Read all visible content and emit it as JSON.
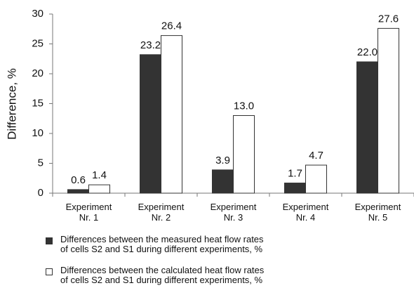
{
  "chart_data": {
    "type": "bar",
    "y_label": "Difference, %",
    "categories": [
      "Experiment\nNr. 1",
      "Experiment\nNr. 2",
      "Experiment\nNr. 3",
      "Experiment\nNr. 4",
      "Experiment\nNr. 5"
    ],
    "series": [
      {
        "name": "Differences between the measured heat flow rates of cells S2 and S1 during different experiments, %",
        "color": "#333333",
        "values": [
          0.6,
          23.2,
          3.9,
          1.7,
          22.0
        ],
        "value_labels": [
          "0.6",
          "23.2",
          "3.9",
          "1.7",
          "22.0"
        ]
      },
      {
        "name": "Differences between the calculated heat flow rates of cells S2 and S1 during different experiments, %",
        "color": "#ffffff",
        "values": [
          1.4,
          26.4,
          13.0,
          4.7,
          27.6
        ],
        "value_labels": [
          "1.4",
          "26.4",
          "13.0",
          "4.7",
          "27.6"
        ]
      }
    ],
    "ylim": [
      0,
      30
    ],
    "yticks": [
      0,
      5,
      10,
      15,
      20,
      25,
      30
    ]
  }
}
